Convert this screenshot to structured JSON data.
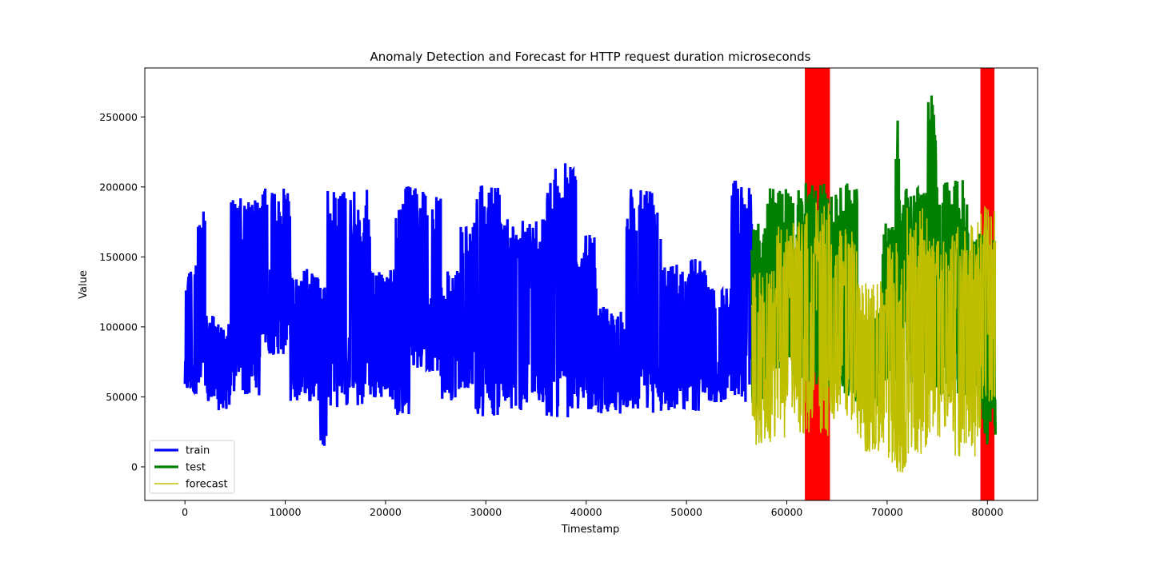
{
  "chart_data": {
    "type": "line",
    "title": "Anomaly Detection and Forecast for HTTP request duration microseconds",
    "xlabel": "Timestamp",
    "ylabel": "Value",
    "xlim": [
      -4000,
      85000
    ],
    "ylim": [
      -24000,
      285000
    ],
    "xticks": [
      0,
      10000,
      20000,
      30000,
      40000,
      50000,
      60000,
      70000,
      80000
    ],
    "yticks": [
      0,
      50000,
      100000,
      150000,
      200000,
      250000
    ],
    "legend": {
      "placement": "lower-left",
      "entries": [
        "train",
        "test",
        "forecast"
      ]
    },
    "colors": {
      "train": "#0000ff",
      "test": "#008000",
      "forecast": "#bfbf00",
      "anomaly": "#ff0000"
    },
    "anomaly_regions": [
      {
        "x_start": 61800,
        "x_end": 64300
      },
      {
        "x_start": 79300,
        "x_end": 80700
      }
    ],
    "series": [
      {
        "name": "train",
        "x_range": [
          0,
          56500
        ],
        "segments": [
          {
            "x_start": 0,
            "x_end": 1200,
            "low": 52000,
            "high": 147000
          },
          {
            "x_start": 1200,
            "x_end": 2000,
            "low": 50000,
            "high": 191000
          },
          {
            "x_start": 2000,
            "x_end": 3000,
            "low": 45000,
            "high": 108000
          },
          {
            "x_start": 3000,
            "x_end": 4500,
            "low": 40000,
            "high": 104000
          },
          {
            "x_start": 4500,
            "x_end": 7500,
            "low": 50000,
            "high": 192000
          },
          {
            "x_start": 7500,
            "x_end": 10500,
            "low": 80000,
            "high": 199000
          },
          {
            "x_start": 10500,
            "x_end": 13500,
            "low": 46000,
            "high": 142000
          },
          {
            "x_start": 13500,
            "x_end": 14200,
            "low": 15000,
            "high": 130000
          },
          {
            "x_start": 14200,
            "x_end": 18500,
            "low": 42000,
            "high": 198000
          },
          {
            "x_start": 18500,
            "x_end": 21000,
            "low": 48000,
            "high": 142000
          },
          {
            "x_start": 21000,
            "x_end": 22500,
            "low": 37000,
            "high": 201000
          },
          {
            "x_start": 22500,
            "x_end": 25500,
            "low": 68000,
            "high": 200000
          },
          {
            "x_start": 25500,
            "x_end": 27500,
            "low": 47000,
            "high": 140000
          },
          {
            "x_start": 27500,
            "x_end": 29000,
            "low": 56000,
            "high": 175000
          },
          {
            "x_start": 29000,
            "x_end": 31500,
            "low": 36000,
            "high": 201000
          },
          {
            "x_start": 31500,
            "x_end": 36000,
            "low": 40000,
            "high": 180000
          },
          {
            "x_start": 36000,
            "x_end": 39000,
            "low": 35000,
            "high": 217000
          },
          {
            "x_start": 39000,
            "x_end": 41000,
            "low": 40000,
            "high": 166000
          },
          {
            "x_start": 41000,
            "x_end": 44000,
            "low": 38000,
            "high": 115000
          },
          {
            "x_start": 44000,
            "x_end": 47500,
            "low": 38000,
            "high": 202000
          },
          {
            "x_start": 47500,
            "x_end": 52000,
            "low": 40000,
            "high": 150000
          },
          {
            "x_start": 52000,
            "x_end": 54500,
            "low": 46000,
            "high": 130000
          },
          {
            "x_start": 54500,
            "x_end": 56500,
            "low": 45000,
            "high": 205000
          }
        ]
      },
      {
        "name": "test",
        "x_range": [
          56500,
          80800
        ],
        "segments": [
          {
            "x_start": 56500,
            "x_end": 58000,
            "low": 40000,
            "high": 175000
          },
          {
            "x_start": 58000,
            "x_end": 61500,
            "low": 60000,
            "high": 200000
          },
          {
            "x_start": 61500,
            "x_end": 65000,
            "low": 55000,
            "high": 203000
          },
          {
            "x_start": 65000,
            "x_end": 67000,
            "low": 45000,
            "high": 205000
          },
          {
            "x_start": 67000,
            "x_end": 69500,
            "low": 40000,
            "high": 110000
          },
          {
            "x_start": 69500,
            "x_end": 70800,
            "low": 60000,
            "high": 175000
          },
          {
            "x_start": 70800,
            "x_end": 71200,
            "low": 70000,
            "high": 258000
          },
          {
            "x_start": 71200,
            "x_end": 74000,
            "low": 60000,
            "high": 200000
          },
          {
            "x_start": 74000,
            "x_end": 74900,
            "low": 60000,
            "high": 272000
          },
          {
            "x_start": 74900,
            "x_end": 78000,
            "low": 50000,
            "high": 205000
          },
          {
            "x_start": 78000,
            "x_end": 79500,
            "low": 40000,
            "high": 170000
          },
          {
            "x_start": 79500,
            "x_end": 80800,
            "low": 13000,
            "high": 165000
          }
        ]
      },
      {
        "name": "forecast",
        "x_range": [
          56500,
          80800
        ],
        "segments": [
          {
            "x_start": 56500,
            "x_end": 59000,
            "low": 15000,
            "high": 140000
          },
          {
            "x_start": 59000,
            "x_end": 61800,
            "low": 20000,
            "high": 175000
          },
          {
            "x_start": 61800,
            "x_end": 64300,
            "low": 22000,
            "high": 190000
          },
          {
            "x_start": 64300,
            "x_end": 67000,
            "low": 30000,
            "high": 170000
          },
          {
            "x_start": 67000,
            "x_end": 70000,
            "low": 10000,
            "high": 135000
          },
          {
            "x_start": 70000,
            "x_end": 72000,
            "low": -9000,
            "high": 160000
          },
          {
            "x_start": 72000,
            "x_end": 74000,
            "low": 5000,
            "high": 185000
          },
          {
            "x_start": 74000,
            "x_end": 76500,
            "low": 20000,
            "high": 165000
          },
          {
            "x_start": 76500,
            "x_end": 79300,
            "low": 5000,
            "high": 175000
          },
          {
            "x_start": 79300,
            "x_end": 80800,
            "low": 40000,
            "high": 187000
          }
        ]
      }
    ]
  }
}
